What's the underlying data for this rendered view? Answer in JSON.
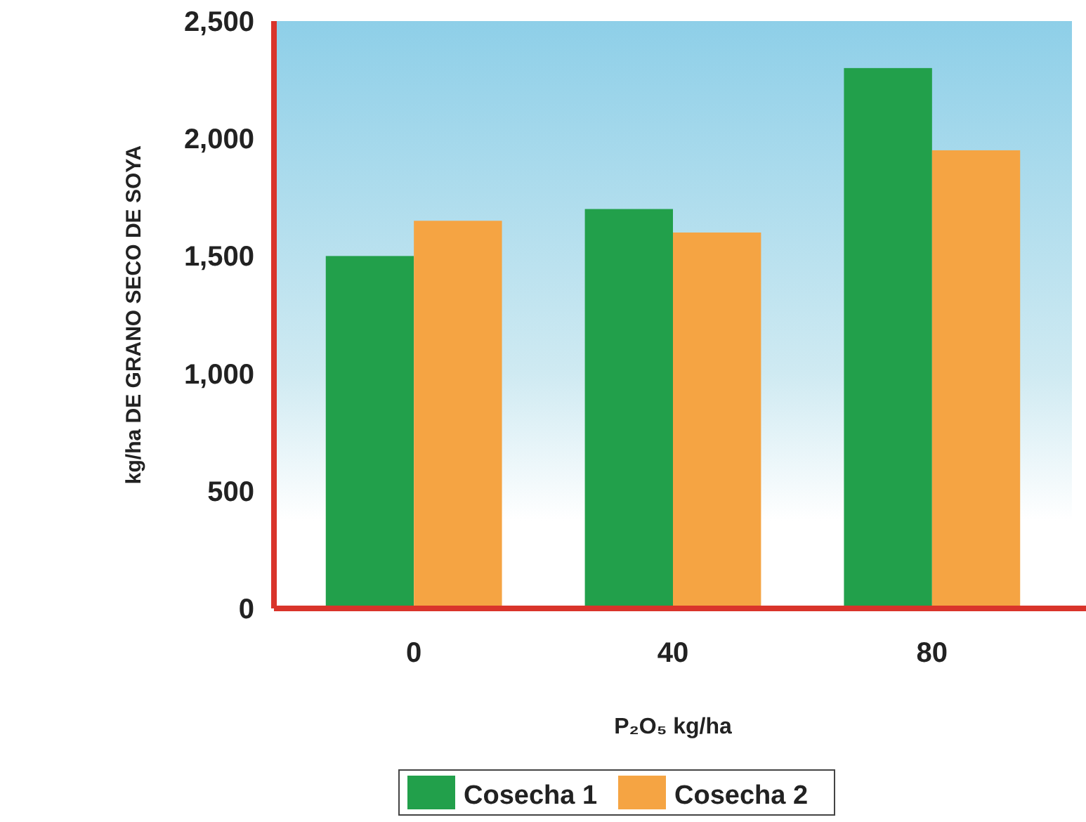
{
  "chart_data": {
    "type": "bar",
    "xlabel": "P₂O₅ kg/ha",
    "ylabel": "kg/ha DE GRANO SECO DE SOYA",
    "categories": [
      "0",
      "40",
      "80"
    ],
    "series": [
      {
        "name": "Cosecha 1",
        "color": "#22a04b",
        "values": [
          1500,
          1700,
          2300
        ]
      },
      {
        "name": "Cosecha 2",
        "color": "#f5a443",
        "values": [
          1650,
          1600,
          1950
        ]
      }
    ],
    "ylim": [
      0,
      2500
    ],
    "yticks": [
      0,
      {
        "value": 500,
        "label": "500"
      },
      {
        "value": 1000,
        "label": "1,000"
      },
      {
        "value": 1500,
        "label": "1,500"
      },
      {
        "value": 2000,
        "label": "2,000"
      },
      {
        "value": 2500,
        "label": "2,500"
      }
    ],
    "legend": "bottom"
  }
}
